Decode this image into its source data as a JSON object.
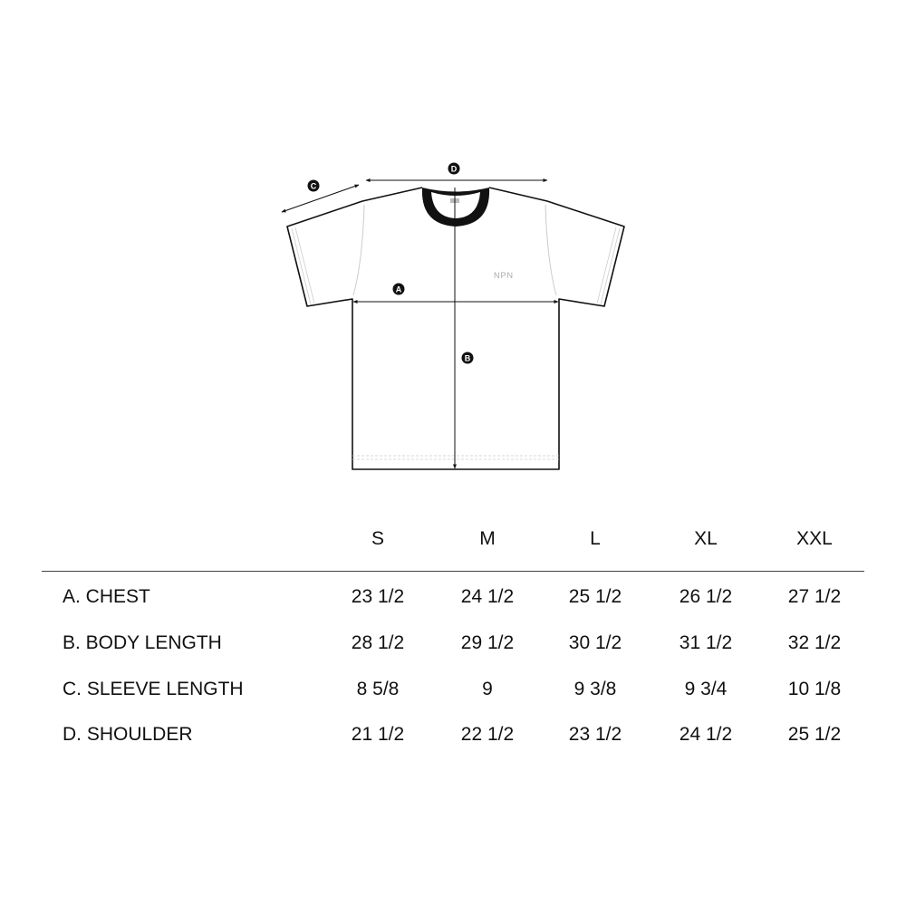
{
  "diagram": {
    "markers": {
      "a": "A",
      "b": "B",
      "c": "C",
      "d": "D"
    },
    "logo_text": "NPN",
    "collar_color": "#111111"
  },
  "table": {
    "sizes": [
      "S",
      "M",
      "L",
      "XL",
      "XXL"
    ],
    "rows": [
      {
        "label": "A. CHEST",
        "values": [
          "23 1/2",
          "24 1/2",
          "25 1/2",
          "26 1/2",
          "27 1/2"
        ]
      },
      {
        "label": "B. BODY LENGTH",
        "values": [
          "28 1/2",
          "29 1/2",
          "30 1/2",
          "31 1/2",
          "32 1/2"
        ]
      },
      {
        "label": "C. SLEEVE LENGTH",
        "values": [
          "8 5/8",
          "9",
          "9 3/8",
          "9 3/4",
          "10 1/8"
        ]
      },
      {
        "label": "D. SHOULDER",
        "values": [
          "21 1/2",
          "22 1/2",
          "23 1/2",
          "24 1/2",
          "25 1/2"
        ]
      }
    ]
  }
}
